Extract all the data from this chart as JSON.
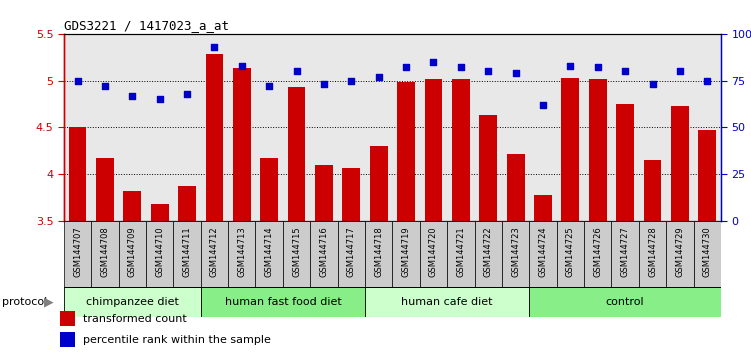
{
  "title": "GDS3221 / 1417023_a_at",
  "samples": [
    "GSM144707",
    "GSM144708",
    "GSM144709",
    "GSM144710",
    "GSM144711",
    "GSM144712",
    "GSM144713",
    "GSM144714",
    "GSM144715",
    "GSM144716",
    "GSM144717",
    "GSM144718",
    "GSM144719",
    "GSM144720",
    "GSM144721",
    "GSM144722",
    "GSM144723",
    "GSM144724",
    "GSM144725",
    "GSM144726",
    "GSM144727",
    "GSM144728",
    "GSM144729",
    "GSM144730"
  ],
  "bar_values": [
    4.5,
    4.17,
    3.82,
    3.68,
    3.88,
    5.28,
    5.13,
    4.17,
    4.93,
    4.1,
    4.07,
    4.3,
    4.98,
    5.02,
    5.02,
    4.63,
    4.22,
    3.78,
    5.03,
    5.02,
    4.75,
    4.15,
    4.73,
    4.47
  ],
  "dot_values": [
    75,
    72,
    67,
    65,
    68,
    93,
    83,
    72,
    80,
    73,
    75,
    77,
    82,
    85,
    82,
    80,
    79,
    62,
    83,
    82,
    80,
    73,
    80,
    75
  ],
  "bar_color": "#cc0000",
  "dot_color": "#0000cc",
  "ylim_left": [
    3.5,
    5.5
  ],
  "ylim_right": [
    0,
    100
  ],
  "yticks_left": [
    3.5,
    4.0,
    4.5,
    5.0,
    5.5
  ],
  "ytick_labels_left": [
    "3.5",
    "4",
    "4.5",
    "5",
    "5.5"
  ],
  "yticks_right": [
    0,
    25,
    50,
    75,
    100
  ],
  "ytick_labels_right": [
    "0",
    "25",
    "50",
    "75",
    "100%"
  ],
  "groups": [
    {
      "label": "chimpanzee diet",
      "start": 0,
      "end": 5
    },
    {
      "label": "human fast food diet",
      "start": 5,
      "end": 11
    },
    {
      "label": "human cafe diet",
      "start": 11,
      "end": 17
    },
    {
      "label": "control",
      "start": 17,
      "end": 24
    }
  ],
  "group_colors_alt": [
    "#ccffcc",
    "#88ee88"
  ],
  "protocol_label": "protocol",
  "legend_bar_label": "transformed count",
  "legend_dot_label": "percentile rank within the sample",
  "plot_bg_color": "#e8e8e8",
  "tick_label_color_left": "#cc0000",
  "tick_label_color_right": "#0000cc",
  "xtick_box_color": "#cccccc"
}
